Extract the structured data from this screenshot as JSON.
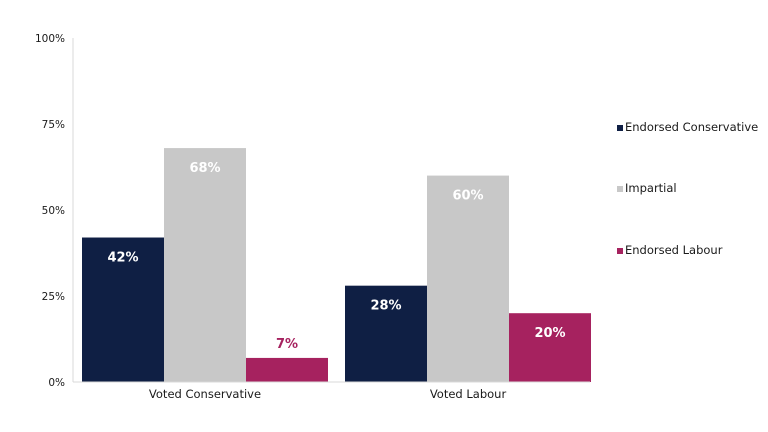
{
  "chart_data": {
    "type": "bar",
    "categories": [
      "Voted Conservative",
      "Voted Labour"
    ],
    "series": [
      {
        "name": "Endorsed Conservative",
        "values": [
          42,
          28
        ],
        "labels": [
          "42%",
          "28%"
        ],
        "color": "#0f1f44",
        "label_color": "#ffffff",
        "label_position": "inside"
      },
      {
        "name": "Impartial",
        "values": [
          68,
          60
        ],
        "labels": [
          "68%",
          "60%"
        ],
        "color": "#c8c8c8",
        "label_color": "#ffffff",
        "label_position": "inside"
      },
      {
        "name": "Endorsed Labour",
        "values": [
          7,
          20
        ],
        "labels": [
          "7%",
          "20%"
        ],
        "color": "#a6225f",
        "label_color_inside": "#ffffff",
        "label_color_outside": "#a6225f",
        "label_position": "auto"
      }
    ],
    "ylim": [
      0,
      100
    ],
    "yticks": [
      0,
      25,
      50,
      75,
      100
    ],
    "ytick_labels": [
      "0%",
      "25%",
      "50%",
      "75%",
      "100%"
    ],
    "xlabel": "",
    "ylabel": "",
    "title": "",
    "grid": false,
    "legend_position": "right"
  }
}
